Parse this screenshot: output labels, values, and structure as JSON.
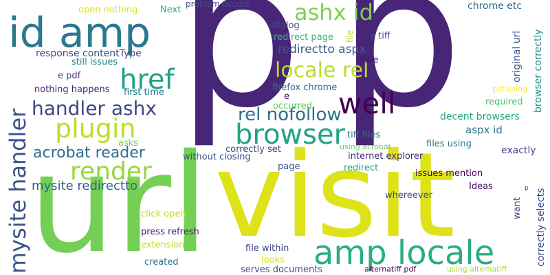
{
  "words": [
    {
      "text": "p",
      "color": "#482677"
    },
    {
      "text": "p",
      "color": "#482677"
    },
    {
      "text": "visit",
      "color": "#dde318"
    },
    {
      "text": "url",
      "color": "#73d055"
    },
    {
      "text": "id amp",
      "color": "#2a788e"
    },
    {
      "text": "amp locale",
      "color": "#29af7f"
    },
    {
      "text": "browser",
      "color": "#20a386"
    },
    {
      "text": "well",
      "color": "#440154"
    },
    {
      "text": "href",
      "color": "#20a386"
    },
    {
      "text": "plugin",
      "color": "#bddf26"
    },
    {
      "text": "render",
      "color": "#95d840"
    },
    {
      "text": "ashx id",
      "color": "#7ad151"
    },
    {
      "text": "locale rel",
      "color": "#b8de29"
    },
    {
      "text": "handler ashx",
      "color": "#3f4788"
    },
    {
      "text": "rel nofollow",
      "color": "#2d708e"
    },
    {
      "text": "acrobat reader",
      "color": "#2f6c8e"
    },
    {
      "text": "mysite handler",
      "color": "#3b528b"
    },
    {
      "text": "mysite redirectto",
      "color": "#33638d"
    },
    {
      "text": "redirectto aspx",
      "color": "#38598c"
    },
    {
      "text": "response contentType",
      "color": "#3d4e8a"
    },
    {
      "text": "still issues",
      "color": "#25858e"
    },
    {
      "text": "e pdf",
      "color": "#453781"
    },
    {
      "text": "nothing happens",
      "color": "#481f70"
    },
    {
      "text": "first time",
      "color": "#2a788e"
    },
    {
      "text": "open nothing",
      "color": "#dde318"
    },
    {
      "text": "Next",
      "color": "#2ab07f"
    },
    {
      "text": "problem occurs",
      "color": "#3e4c8a"
    },
    {
      "text": "dialog",
      "color": "#3b528b"
    },
    {
      "text": "redirect page",
      "color": "#35b779"
    },
    {
      "text": "file",
      "color": "#b5de2b"
    },
    {
      "text": "e tiff",
      "color": "#3f4889"
    },
    {
      "text": "save",
      "color": "#481769"
    },
    {
      "text": "chrome etc",
      "color": "#31688e"
    },
    {
      "text": "original url",
      "color": "#3b528b"
    },
    {
      "text": "browser correctly",
      "color": "#21918c"
    },
    {
      "text": "pdf using",
      "color": "#fde725"
    },
    {
      "text": "required",
      "color": "#4ac16d"
    },
    {
      "text": "firefox chrome",
      "color": "#2f6c8e"
    },
    {
      "text": "e",
      "color": "#440154"
    },
    {
      "text": "occurred",
      "color": "#5ec962"
    },
    {
      "text": "decent browsers",
      "color": "#22a884"
    },
    {
      "text": "aspx id",
      "color": "#2a788e"
    },
    {
      "text": "tiff files",
      "color": "#31688e"
    },
    {
      "text": "using acrobat",
      "color": "#6ccd5a"
    },
    {
      "text": "files using",
      "color": "#2c728e"
    },
    {
      "text": "exactly",
      "color": "#404688"
    },
    {
      "text": "correctly set",
      "color": "#3f4788"
    },
    {
      "text": "asks",
      "color": "#7ad151"
    },
    {
      "text": "without closing",
      "color": "#3b528b"
    },
    {
      "text": "internet explorer",
      "color": "#472d7b"
    },
    {
      "text": "page",
      "color": "#3b528b"
    },
    {
      "text": "redirect",
      "color": "#20a386"
    },
    {
      "text": "issues mention",
      "color": "#440154"
    },
    {
      "text": "Ideas",
      "color": "#440154"
    },
    {
      "text": "correctly selects",
      "color": "#3e4c8a"
    },
    {
      "text": "want",
      "color": "#404688"
    },
    {
      "text": "p",
      "color": "#3b528b"
    },
    {
      "text": "whereever",
      "color": "#3f4788"
    },
    {
      "text": "click open",
      "color": "#bddf26"
    },
    {
      "text": "press refresh",
      "color": "#481a6c"
    },
    {
      "text": "extension",
      "color": "#c2df23"
    },
    {
      "text": "file within",
      "color": "#3f4889"
    },
    {
      "text": "created",
      "color": "#2d708e"
    },
    {
      "text": "looks",
      "color": "#d8e219"
    },
    {
      "text": "serves documents",
      "color": "#3b528b"
    },
    {
      "text": "alternatiff pdf",
      "color": "#440154"
    },
    {
      "text": "using alternatiff",
      "color": "#a8db34"
    }
  ]
}
